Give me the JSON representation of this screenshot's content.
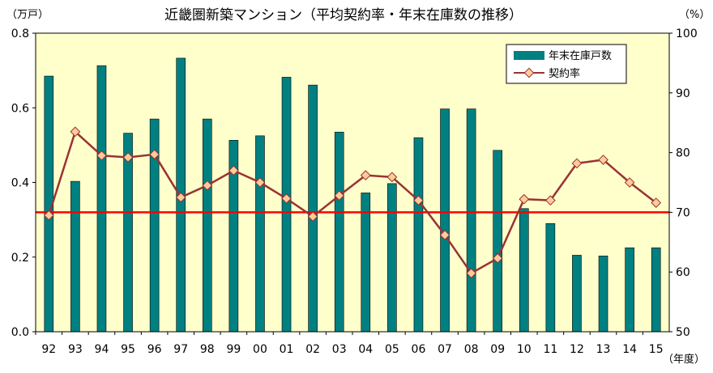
{
  "chart_data": {
    "type": "bar",
    "title": "近畿圏新築マンション（平均契約率・年末在庫数の推移）",
    "y_left_unit": "（万戸）",
    "y_right_unit": "（%）",
    "x_unit": "（年度）",
    "categories": [
      "92",
      "93",
      "94",
      "95",
      "96",
      "97",
      "98",
      "99",
      "00",
      "01",
      "02",
      "03",
      "04",
      "05",
      "06",
      "07",
      "08",
      "09",
      "10",
      "11",
      "12",
      "13",
      "14",
      "15"
    ],
    "y_left_range": [
      0,
      0.8
    ],
    "y_left_ticks": [
      "0.0",
      "0.2",
      "0.4",
      "0.6",
      "0.8"
    ],
    "y_right_range": [
      50,
      100
    ],
    "y_right_ticks": [
      "50",
      "60",
      "70",
      "80",
      "90",
      "100"
    ],
    "grid": false,
    "plot_background": "#ffffcc",
    "legend_position": "top-right",
    "series": [
      {
        "name": "年末在庫戸数",
        "kind": "bar",
        "axis": "left",
        "color": "#008080",
        "values": [
          0.685,
          0.403,
          0.713,
          0.532,
          0.57,
          0.733,
          0.57,
          0.513,
          0.525,
          0.682,
          0.661,
          0.535,
          0.372,
          0.397,
          0.52,
          0.597,
          0.597,
          0.486,
          0.33,
          0.29,
          0.205,
          0.203,
          0.225,
          0.225
        ]
      },
      {
        "name": "契約率",
        "kind": "line",
        "axis": "right",
        "color": "#993333",
        "marker_color": "#ffcc99",
        "values": [
          69.5,
          83.5,
          79.5,
          79.2,
          79.7,
          72.5,
          74.5,
          77.0,
          75.0,
          72.3,
          69.3,
          72.8,
          76.2,
          75.9,
          72.0,
          66.2,
          59.8,
          62.3,
          72.2,
          72.0,
          78.2,
          78.8,
          75.0,
          71.6
        ]
      }
    ],
    "reference_line": {
      "axis": "right",
      "value": 70,
      "color": "#ff0000"
    }
  }
}
